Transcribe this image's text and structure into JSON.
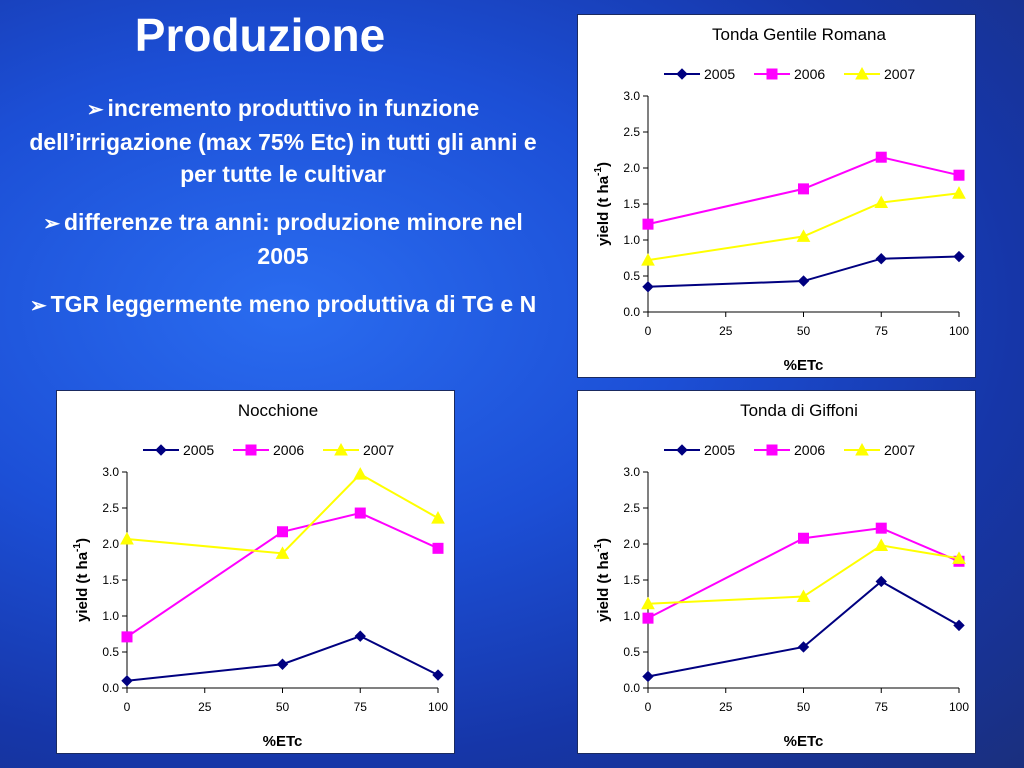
{
  "slide": {
    "title": "Produzione",
    "bullets": [
      "incremento produttivo in funzione dell’irrigazione (max 75% Etc) in tutti gli anni e per tutte le cultivar",
      "differenze tra anni: produzione minore nel 2005",
      "TGR leggermente meno produttiva di TG e N"
    ],
    "bullet_icon": "arrow-bullet-icon",
    "background_color": "#1c4fd6"
  },
  "chart_data": [
    {
      "type": "line",
      "title": "Tonda Gentile Romana",
      "xlabel": "%ETc",
      "ylabel": "yield    (t  ha",
      "ylabel_sup": "-1",
      "ylabel_close": ")",
      "x": [
        0,
        50,
        75,
        100
      ],
      "xticks": [
        0,
        25,
        50,
        75,
        100
      ],
      "yticks": [
        "0.0",
        "0.5",
        "1.0",
        "1.5",
        "2.0",
        "2.5",
        "3.0"
      ],
      "xlim": [
        0,
        100
      ],
      "ylim": [
        0,
        3
      ],
      "legend_position": "top",
      "grid": false,
      "series": [
        {
          "name": "2005",
          "color": "#000080",
          "marker": "diamond",
          "values": [
            0.35,
            0.43,
            0.74,
            0.77
          ]
        },
        {
          "name": "2006",
          "color": "#ff00ff",
          "marker": "square",
          "values": [
            1.22,
            1.71,
            2.15,
            1.9
          ]
        },
        {
          "name": "2007",
          "color": "#ffff00",
          "marker": "triangle",
          "values": [
            0.72,
            1.05,
            1.52,
            1.65
          ]
        }
      ]
    },
    {
      "type": "line",
      "title": "Nocchione",
      "xlabel": "%ETc",
      "ylabel": "yield    (t  ha",
      "ylabel_sup": "-1",
      "ylabel_close": ")",
      "x": [
        0,
        50,
        75,
        100
      ],
      "xticks": [
        0,
        25,
        50,
        75,
        100
      ],
      "yticks": [
        "0.0",
        "0.5",
        "1.0",
        "1.5",
        "2.0",
        "2.5",
        "3.0"
      ],
      "xlim": [
        0,
        100
      ],
      "ylim": [
        0,
        3
      ],
      "legend_position": "top",
      "grid": false,
      "series": [
        {
          "name": "2005",
          "color": "#000080",
          "marker": "diamond",
          "values": [
            0.1,
            0.33,
            0.72,
            0.18
          ]
        },
        {
          "name": "2006",
          "color": "#ff00ff",
          "marker": "square",
          "values": [
            0.71,
            2.17,
            2.43,
            1.94
          ]
        },
        {
          "name": "2007",
          "color": "#ffff00",
          "marker": "triangle",
          "values": [
            2.07,
            1.87,
            2.97,
            2.36
          ]
        }
      ]
    },
    {
      "type": "line",
      "title": "Tonda  di Giffoni",
      "xlabel": "%ETc",
      "ylabel": "yield    (t  ha",
      "ylabel_sup": "-1",
      "ylabel_close": ")",
      "x": [
        0,
        50,
        75,
        100
      ],
      "xticks": [
        0,
        25,
        50,
        75,
        100
      ],
      "yticks": [
        "0.0",
        "0.5",
        "1.0",
        "1.5",
        "2.0",
        "2.5",
        "3.0"
      ],
      "xlim": [
        0,
        100
      ],
      "ylim": [
        0,
        3
      ],
      "legend_position": "top",
      "grid": false,
      "series": [
        {
          "name": "2005",
          "color": "#000080",
          "marker": "diamond",
          "values": [
            0.16,
            0.57,
            1.48,
            0.87
          ]
        },
        {
          "name": "2006",
          "color": "#ff00ff",
          "marker": "square",
          "values": [
            0.97,
            2.08,
            2.22,
            1.76
          ]
        },
        {
          "name": "2007",
          "color": "#ffff00",
          "marker": "triangle",
          "values": [
            1.17,
            1.27,
            1.98,
            1.8
          ]
        }
      ]
    }
  ]
}
